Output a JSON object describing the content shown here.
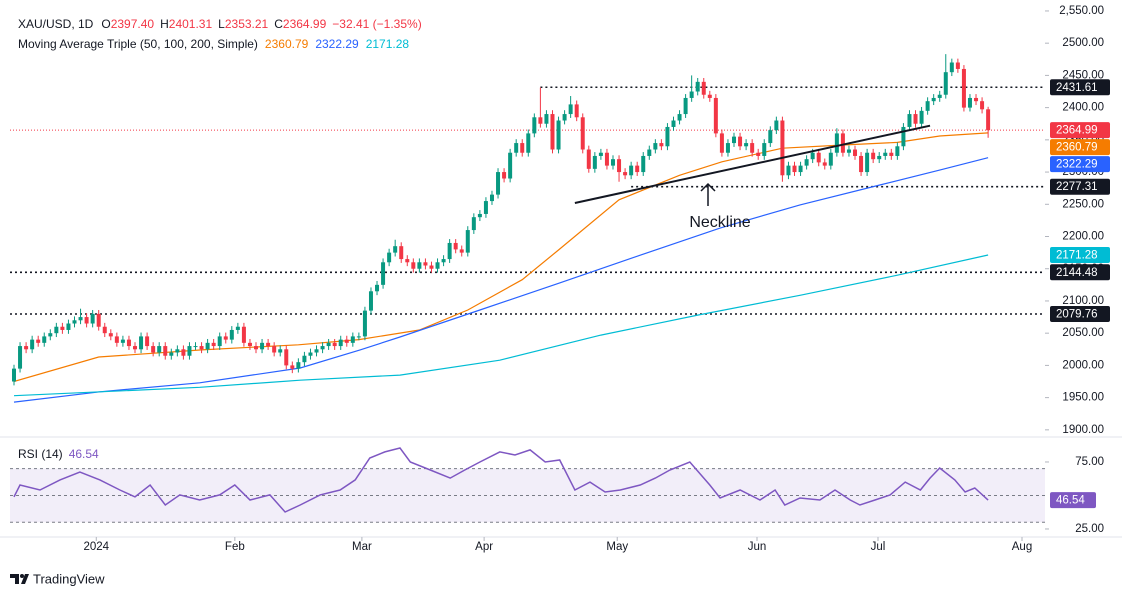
{
  "chart_data": [
    {
      "type": "candlestick",
      "title": "XAU/USD, 1D",
      "fields": [
        {
          "key": "O",
          "text": "2397.40"
        },
        {
          "key": "H",
          "text": "2401.31"
        },
        {
          "key": "L",
          "text": "2353.21"
        },
        {
          "key": "C",
          "text": "2364.99"
        }
      ],
      "change": "−32.41 (−1.35%)",
      "up_color": "#089981",
      "down_color": "#f23645",
      "open": [
        1975,
        1995,
        2030,
        2025,
        2040,
        2035,
        2045,
        2050,
        2060,
        2055,
        2065,
        2070,
        2075,
        2065,
        2080,
        2060,
        2050,
        2045,
        2035,
        2040,
        2030,
        2025,
        2045,
        2030,
        2020,
        2030,
        2015,
        2020,
        2025,
        2015,
        2030,
        2030,
        2025,
        2035,
        2030,
        2045,
        2040,
        2055,
        2060,
        2035,
        2030,
        2025,
        2035,
        2030,
        2020,
        2025,
        2000,
        1995,
        2005,
        2015,
        2020,
        2025,
        2030,
        2035,
        2030,
        2040,
        2035,
        2045,
        2045,
        2085,
        2115,
        2125,
        2160,
        2175,
        2185,
        2165,
        2160,
        2150,
        2160,
        2155,
        2150,
        2160,
        2165,
        2190,
        2180,
        2175,
        2210,
        2230,
        2235,
        2255,
        2265,
        2300,
        2290,
        2330,
        2345,
        2330,
        2360,
        2385,
        2375,
        2390,
        2335,
        2380,
        2390,
        2405,
        2385,
        2335,
        2305,
        2325,
        2330,
        2310,
        2320,
        2300,
        2295,
        2310,
        2300,
        2325,
        2335,
        2345,
        2340,
        2370,
        2380,
        2390,
        2415,
        2425,
        2440,
        2420,
        2415,
        2360,
        2330,
        2345,
        2355,
        2340,
        2345,
        2330,
        2325,
        2345,
        2365,
        2380,
        2295,
        2310,
        2300,
        2310,
        2320,
        2330,
        2315,
        2310,
        2330,
        2360,
        2330,
        2335,
        2325,
        2300,
        2330,
        2320,
        2325,
        2330,
        2325,
        2340,
        2370,
        2390,
        2375,
        2395,
        2410,
        2415,
        2420,
        2455,
        2470,
        2460,
        2400,
        2415,
        2410,
        2397.4
      ],
      "high": [
        2001,
        2036,
        2036,
        2046,
        2046,
        2051,
        2056,
        2066,
        2066,
        2071,
        2076,
        2088,
        2081,
        2086,
        2086,
        2066,
        2056,
        2051,
        2046,
        2046,
        2036,
        2051,
        2051,
        2036,
        2036,
        2036,
        2026,
        2031,
        2031,
        2036,
        2036,
        2036,
        2041,
        2041,
        2051,
        2051,
        2061,
        2066,
        2066,
        2041,
        2036,
        2041,
        2041,
        2036,
        2031,
        2031,
        2006,
        2011,
        2021,
        2026,
        2031,
        2036,
        2041,
        2041,
        2046,
        2046,
        2051,
        2051,
        2091,
        2121,
        2131,
        2166,
        2181,
        2195,
        2191,
        2171,
        2166,
        2166,
        2166,
        2161,
        2166,
        2171,
        2196,
        2196,
        2186,
        2216,
        2236,
        2241,
        2261,
        2271,
        2306,
        2306,
        2336,
        2351,
        2351,
        2366,
        2391,
        2431,
        2396,
        2396,
        2386,
        2396,
        2418,
        2411,
        2391,
        2341,
        2331,
        2336,
        2336,
        2326,
        2326,
        2306,
        2316,
        2316,
        2331,
        2341,
        2351,
        2351,
        2376,
        2386,
        2396,
        2421,
        2450,
        2446,
        2446,
        2426,
        2421,
        2366,
        2351,
        2361,
        2361,
        2351,
        2351,
        2336,
        2351,
        2371,
        2386,
        2386,
        2316,
        2316,
        2316,
        2326,
        2336,
        2336,
        2321,
        2336,
        2368,
        2366,
        2341,
        2341,
        2331,
        2336,
        2336,
        2331,
        2336,
        2336,
        2346,
        2376,
        2396,
        2396,
        2401,
        2416,
        2421,
        2426,
        2483,
        2476,
        2476,
        2466,
        2421,
        2421,
        2416,
        2401.31
      ],
      "low": [
        1969,
        1989,
        2019,
        2019,
        2029,
        2029,
        2039,
        2044,
        2049,
        2049,
        2059,
        2064,
        2059,
        2059,
        2054,
        2044,
        2039,
        2029,
        2029,
        2024,
        2019,
        2019,
        2024,
        2014,
        2014,
        2009,
        2009,
        2014,
        2009,
        2009,
        2024,
        2019,
        2019,
        2024,
        2024,
        2034,
        2034,
        2049,
        2029,
        2024,
        2019,
        2019,
        2024,
        2014,
        2014,
        1994,
        1988,
        1989,
        1999,
        2009,
        2014,
        2019,
        2024,
        2024,
        2024,
        2029,
        2029,
        2039,
        2039,
        2079,
        2109,
        2119,
        2154,
        2169,
        2159,
        2154,
        2144,
        2144,
        2149,
        2144,
        2144,
        2154,
        2159,
        2174,
        2169,
        2169,
        2204,
        2224,
        2229,
        2249,
        2259,
        2284,
        2284,
        2324,
        2324,
        2324,
        2354,
        2369,
        2369,
        2329,
        2329,
        2374,
        2384,
        2379,
        2329,
        2299,
        2299,
        2319,
        2304,
        2304,
        2285,
        2289,
        2289,
        2294,
        2294,
        2319,
        2329,
        2334,
        2334,
        2364,
        2374,
        2384,
        2409,
        2419,
        2414,
        2409,
        2354,
        2324,
        2324,
        2339,
        2334,
        2334,
        2324,
        2319,
        2319,
        2339,
        2359,
        2285,
        2289,
        2294,
        2294,
        2304,
        2314,
        2309,
        2304,
        2304,
        2324,
        2324,
        2324,
        2319,
        2294,
        2294,
        2314,
        2314,
        2319,
        2319,
        2319,
        2334,
        2364,
        2369,
        2369,
        2389,
        2404,
        2409,
        2414,
        2449,
        2454,
        2394,
        2394,
        2404,
        2391,
        2353.21
      ],
      "close": [
        1995,
        2030,
        2025,
        2040,
        2035,
        2045,
        2050,
        2060,
        2055,
        2065,
        2070,
        2075,
        2065,
        2080,
        2060,
        2050,
        2045,
        2035,
        2040,
        2030,
        2025,
        2045,
        2030,
        2020,
        2030,
        2015,
        2020,
        2025,
        2015,
        2030,
        2030,
        2025,
        2035,
        2030,
        2045,
        2040,
        2055,
        2060,
        2035,
        2030,
        2025,
        2035,
        2030,
        2020,
        2025,
        2000,
        1995,
        2005,
        2015,
        2020,
        2025,
        2030,
        2035,
        2030,
        2040,
        2035,
        2045,
        2045,
        2085,
        2115,
        2125,
        2160,
        2175,
        2185,
        2165,
        2160,
        2150,
        2160,
        2155,
        2150,
        2160,
        2165,
        2190,
        2180,
        2175,
        2210,
        2230,
        2235,
        2255,
        2265,
        2300,
        2290,
        2330,
        2345,
        2330,
        2360,
        2385,
        2375,
        2390,
        2335,
        2380,
        2390,
        2405,
        2385,
        2335,
        2305,
        2325,
        2330,
        2310,
        2320,
        2300,
        2295,
        2310,
        2300,
        2325,
        2335,
        2345,
        2340,
        2370,
        2380,
        2390,
        2415,
        2425,
        2440,
        2420,
        2415,
        2360,
        2330,
        2345,
        2355,
        2340,
        2345,
        2330,
        2325,
        2345,
        2365,
        2380,
        2295,
        2310,
        2300,
        2310,
        2320,
        2330,
        2315,
        2310,
        2330,
        2360,
        2330,
        2335,
        2325,
        2300,
        2330,
        2320,
        2325,
        2330,
        2325,
        2340,
        2370,
        2390,
        2375,
        2395,
        2410,
        2415,
        2420,
        2455,
        2470,
        2460,
        2400,
        2415,
        2410,
        2397.4,
        2364.99
      ],
      "indicator": {
        "name": "Moving Average Triple (50, 100, 200, Simple)",
        "lines": [
          {
            "color": "#f57c00",
            "legend_value": "2360.79",
            "x": [
              0,
              14,
              31,
              47,
              57,
              67,
              75,
              84,
              90,
              100,
              110,
              117,
              127,
              137,
              146,
              153,
              161
            ],
            "values": [
              1975,
              2013,
              2024,
              2032,
              2040,
              2055,
              2086,
              2133,
              2179,
              2257,
              2295,
              2316,
              2337,
              2342,
              2346,
              2356,
              2360.79
            ]
          },
          {
            "color": "#2962ff",
            "legend_value": "2322.29",
            "x": [
              0,
              14.2,
              30.7,
              47.3,
              57.2,
              63.8,
              77,
              90.2,
              103.5,
              116.7,
              129.9,
              143.1,
              153,
              161
            ],
            "values": [
              1943,
              1959,
              1973,
              1996,
              2024,
              2044,
              2086,
              2128,
              2171,
              2213,
              2249,
              2280,
              2303,
              2322.29
            ]
          },
          {
            "color": "#00bcd4",
            "legend_value": "2171.28",
            "x": [
              0,
              30.7,
              47.3,
              63.8,
              80.3,
              97,
              113,
              130,
              146,
              161
            ],
            "values": [
              1953,
              1966,
              1977,
              1985,
              2008,
              2047,
              2078,
              2109,
              2140,
              2171.28
            ]
          }
        ]
      },
      "levels": [
        {
          "value": 2431.61,
          "from": 87
        },
        {
          "value": 2277.31,
          "from": 102
        },
        {
          "value": 2144.48,
          "from": -0.66
        },
        {
          "value": 2079.76,
          "from": -0.66
        }
      ],
      "trendline": {
        "x": [
          92.7,
          151.4
        ],
        "values": [
          2252,
          2372
        ]
      },
      "annotation": "Neckline",
      "price_labels": [
        {
          "value": 2431.61,
          "label": "2431.61",
          "color": "#131722"
        },
        {
          "value": 2364.99,
          "label": "2364.99",
          "color": "#f23645",
          "line": true
        },
        {
          "value": 2360.79,
          "label": "2360.79",
          "color": "#f57c00"
        },
        {
          "value": 2322.29,
          "label": "2322.29",
          "color": "#2962ff"
        },
        {
          "value": 2277.31,
          "label": "2277.31",
          "color": "#131722"
        },
        {
          "value": 2171.28,
          "label": "2171.28",
          "color": "#00bcd4"
        },
        {
          "value": 2144.48,
          "label": "2144.48",
          "color": "#131722"
        },
        {
          "value": 2079.76,
          "label": "2079.76",
          "color": "#131722"
        }
      ],
      "xlim": [
        -0.66,
        170.4
      ],
      "xticks": [
        {
          "value": 13.6,
          "label": "2024"
        },
        {
          "value": 36.5,
          "label": "Feb"
        },
        {
          "value": 57.5,
          "label": "Mar"
        },
        {
          "value": 77.7,
          "label": "Apr"
        },
        {
          "value": 99.7,
          "label": "May"
        },
        {
          "value": 122.8,
          "label": "Jun"
        },
        {
          "value": 142.8,
          "label": "Jul"
        },
        {
          "value": 166.6,
          "label": "Aug"
        }
      ],
      "ylim": [
        1892,
        2567
      ],
      "yticks": [
        {
          "value": 1900,
          "label": "1900.00"
        },
        {
          "value": 1950,
          "label": "1950.00"
        },
        {
          "value": 2000,
          "label": "2000.00"
        },
        {
          "value": 2050,
          "label": "2050.00"
        },
        {
          "value": 2100,
          "label": "2100.00"
        },
        {
          "value": 2150,
          "label": "2150.00"
        },
        {
          "value": 2200,
          "label": "2200.00"
        },
        {
          "value": 2250,
          "label": "2250.00"
        },
        {
          "value": 2300,
          "label": "2300.00"
        },
        {
          "value": 2350,
          "label": "2350.00"
        },
        {
          "value": 2400,
          "label": "2400.00"
        },
        {
          "value": 2450,
          "label": "2450.00"
        },
        {
          "value": 2500,
          "label": "2500.00"
        },
        {
          "value": 2550,
          "label": "2,550.00"
        }
      ]
    },
    {
      "type": "line",
      "title": "RSI (14)",
      "legend_value": "46.54",
      "color": "#7e57c2",
      "x": [
        0,
        1,
        4.3,
        7.6,
        10.9,
        14.2,
        17.5,
        20,
        22.5,
        25,
        27.4,
        30.7,
        34,
        36.5,
        39,
        42.3,
        44.8,
        47.3,
        50.6,
        53.9,
        56.4,
        58.8,
        61.3,
        63.8,
        65.5,
        68.8,
        72.1,
        74.5,
        77,
        80.3,
        82.8,
        85.3,
        87.8,
        90.2,
        92.7,
        95.2,
        97.7,
        100.2,
        103.5,
        106,
        108.4,
        111.7,
        115,
        116.7,
        120,
        123.3,
        125.8,
        127.4,
        129.9,
        133.2,
        135.7,
        138.2,
        139.8,
        142.3,
        144.8,
        147.3,
        149.8,
        151.4,
        153,
        155.5,
        157.2,
        158.8,
        161
      ],
      "values": [
        48.9,
        57.8,
        54.1,
        61.6,
        67.5,
        61.6,
        54.1,
        48.9,
        57.8,
        42.9,
        50.4,
        46.6,
        50.4,
        57.8,
        46.6,
        50.4,
        37.7,
        42.9,
        50.4,
        54.1,
        61.6,
        78,
        82.5,
        85.4,
        75,
        69,
        63,
        69,
        75,
        82.5,
        80.2,
        84,
        75,
        76.5,
        54.1,
        60,
        52.6,
        54.1,
        57.8,
        63,
        69,
        75,
        57.8,
        48.1,
        54.1,
        46.6,
        54.1,
        42.9,
        48.1,
        46.6,
        54.1,
        46.6,
        42.9,
        46.6,
        50.4,
        60,
        54.1,
        63,
        70.5,
        61.6,
        52.6,
        55.6,
        46.54
      ],
      "band": [
        30,
        70
      ],
      "levels": [
        70,
        50,
        30
      ],
      "marker": {
        "value": 46.54,
        "label": "46.54"
      },
      "xlim": [
        -0.66,
        170.4
      ],
      "ylim": [
        20.5,
        91.4
      ],
      "yticks": [
        {
          "value": 25,
          "label": "25.00"
        },
        {
          "value": 75,
          "label": "75.00"
        }
      ]
    }
  ],
  "brand": "TradingView"
}
